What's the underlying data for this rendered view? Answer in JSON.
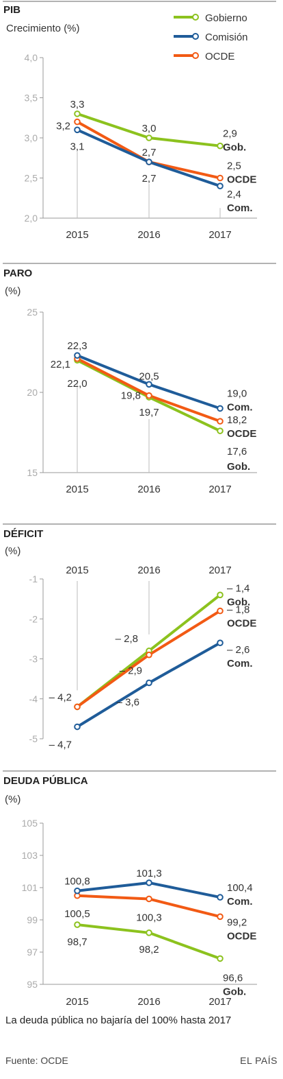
{
  "colors": {
    "Gobierno": "#8cc21e",
    "Comisión": "#1f5c99",
    "OCDE": "#f25a14",
    "axis": "#999999",
    "rule": "#999999"
  },
  "legend": {
    "items": [
      {
        "name": "Gobierno",
        "color": "#8cc21e"
      },
      {
        "name": "Comisión",
        "color": "#1f5c99"
      },
      {
        "name": "OCDE",
        "color": "#f25a14"
      }
    ]
  },
  "chart_data": [
    {
      "type": "line",
      "title": "PIB",
      "ylabel": "Crecimiento (%)",
      "x": [
        "2015",
        "2016",
        "2017"
      ],
      "ylim": [
        2.0,
        4.0
      ],
      "yticks": [
        "2,0",
        "2,5",
        "3,0",
        "3,5",
        "4,0"
      ],
      "xaxis_position": "bottom",
      "series": [
        {
          "name": "Gobierno",
          "values": [
            3.3,
            3.0,
            2.9
          ],
          "labels": [
            "3,3",
            "3,0",
            "2,9"
          ],
          "end_label": "Gob."
        },
        {
          "name": "Comisión",
          "values": [
            3.1,
            2.7,
            2.4
          ],
          "labels": [
            "3,1",
            "2,7",
            "2,4"
          ],
          "end_label": "Com."
        },
        {
          "name": "OCDE",
          "values": [
            3.2,
            2.7,
            2.5
          ],
          "labels": [
            "3,2",
            "2,7",
            "2,5"
          ],
          "end_label": "OCDE"
        }
      ]
    },
    {
      "type": "line",
      "title": "PARO",
      "ylabel": "(%)",
      "x": [
        "2015",
        "2016",
        "2017"
      ],
      "ylim": [
        15,
        25
      ],
      "yticks": [
        "15",
        "20",
        "25"
      ],
      "xaxis_position": "bottom",
      "series": [
        {
          "name": "Gobierno",
          "values": [
            22.0,
            19.7,
            17.6
          ],
          "labels": [
            "22,0",
            "19,7",
            "17,6"
          ],
          "end_label": "Gob."
        },
        {
          "name": "Comisión",
          "values": [
            22.3,
            20.5,
            19.0
          ],
          "labels": [
            "22,3",
            "20,5",
            "19,0"
          ],
          "end_label": "Com."
        },
        {
          "name": "OCDE",
          "values": [
            22.1,
            19.8,
            18.2
          ],
          "labels": [
            "22,1",
            "19,8",
            "18,2"
          ],
          "end_label": "OCDE"
        }
      ]
    },
    {
      "type": "line",
      "title": "DÉFICIT",
      "ylabel": "(%)",
      "x": [
        "2015",
        "2016",
        "2017"
      ],
      "ylim": [
        -5,
        -1
      ],
      "yticks": [
        "-5",
        "-4",
        "-3",
        "-2",
        "-1"
      ],
      "xaxis_position": "top",
      "series": [
        {
          "name": "Gobierno",
          "values": [
            -4.2,
            -2.8,
            -1.4
          ],
          "labels": [
            "– 4,2",
            "– 2,8",
            "– 1,4"
          ],
          "end_label": "Gob."
        },
        {
          "name": "Comisión",
          "values": [
            -4.7,
            -3.6,
            -2.6
          ],
          "labels": [
            "– 4,7",
            "– 3,6",
            "– 2,6"
          ],
          "end_label": "Com."
        },
        {
          "name": "OCDE",
          "values": [
            -4.2,
            -2.9,
            -1.8
          ],
          "labels": [
            "",
            "– 2,9",
            "– 1,8"
          ],
          "end_label": "OCDE"
        }
      ]
    },
    {
      "type": "line",
      "title": "DEUDA PÚBLICA",
      "ylabel": "(%)",
      "x": [
        "2015",
        "2016",
        "2017"
      ],
      "ylim": [
        95,
        105
      ],
      "yticks": [
        "95",
        "97",
        "99",
        "101",
        "103",
        "105"
      ],
      "xaxis_position": "bottom",
      "series": [
        {
          "name": "Gobierno",
          "values": [
            98.7,
            98.2,
            96.6
          ],
          "labels": [
            "98,7",
            "98,2",
            "96,6"
          ],
          "end_label": "Gob."
        },
        {
          "name": "Comisión",
          "values": [
            100.8,
            101.3,
            100.4
          ],
          "labels": [
            "100,8",
            "101,3",
            "100,4"
          ],
          "end_label": "Com."
        },
        {
          "name": "OCDE",
          "values": [
            100.5,
            100.3,
            99.2
          ],
          "labels": [
            "100,5",
            "100,3",
            "99,2"
          ],
          "end_label": "OCDE"
        }
      ]
    }
  ],
  "note": "La deuda pública no bajaría del 100% hasta 2017",
  "source": "Fuente: OCDE",
  "brand": "EL PAÍS"
}
